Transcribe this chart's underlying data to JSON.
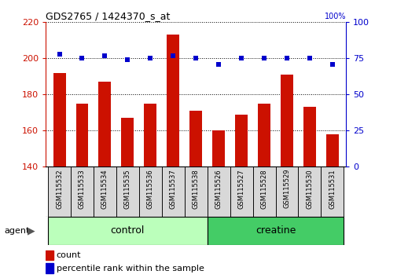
{
  "title": "GDS2765 / 1424370_s_at",
  "samples": [
    "GSM115532",
    "GSM115533",
    "GSM115534",
    "GSM115535",
    "GSM115536",
    "GSM115537",
    "GSM115538",
    "GSM115526",
    "GSM115527",
    "GSM115528",
    "GSM115529",
    "GSM115530",
    "GSM115531"
  ],
  "counts": [
    192,
    175,
    187,
    167,
    175,
    213,
    171,
    160,
    169,
    175,
    191,
    173,
    158
  ],
  "percentiles": [
    78,
    75,
    77,
    74,
    75,
    77,
    75,
    71,
    75,
    75,
    75,
    75,
    71
  ],
  "ylim_left": [
    140,
    220
  ],
  "ylim_right": [
    0,
    100
  ],
  "yticks_left": [
    140,
    160,
    180,
    200,
    220
  ],
  "yticks_right": [
    0,
    25,
    50,
    75,
    100
  ],
  "bar_color": "#cc1100",
  "dot_color": "#0000cc",
  "control_light": "#ccffcc",
  "control_dark": "#aaffaa",
  "creatine_color": "#33cc55",
  "control_label": "control",
  "creatine_label": "creatine",
  "agent_label": "agent",
  "legend_count": "count",
  "legend_percentile": "percentile rank within the sample",
  "n_control": 7,
  "n_creatine": 6,
  "bar_width": 0.55,
  "cell_bg": "#d4d4d4"
}
